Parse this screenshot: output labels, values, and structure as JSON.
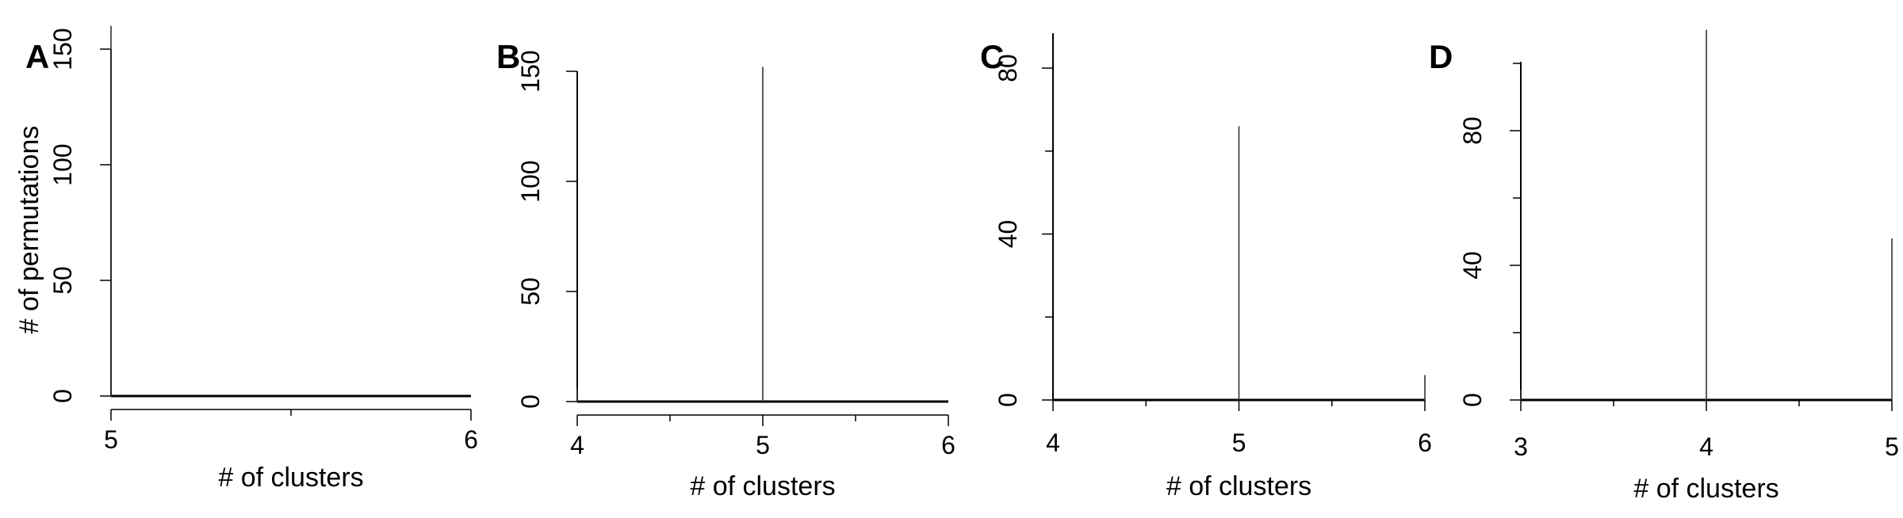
{
  "chart_data": [
    {
      "panel": "A",
      "type": "bar",
      "xlabel": "# of clusters",
      "ylabel": "# of permutations",
      "x_ticks": [
        5,
        6
      ],
      "y_ticks": [
        0,
        50,
        100,
        150
      ],
      "xlim": [
        5,
        6
      ],
      "ylim": [
        0,
        160
      ],
      "x": [
        5,
        6
      ],
      "values": [
        160,
        0
      ]
    },
    {
      "panel": "B",
      "type": "bar",
      "xlabel": "# of clusters",
      "ylabel": "",
      "x_ticks": [
        4,
        5,
        6
      ],
      "y_ticks": [
        0,
        50,
        100,
        150
      ],
      "xlim": [
        4,
        6
      ],
      "ylim": [
        0,
        150
      ],
      "x": [
        4,
        5,
        6
      ],
      "values": [
        6,
        152,
        0
      ]
    },
    {
      "panel": "C",
      "type": "bar",
      "xlabel": "# of clusters",
      "ylabel": "",
      "x_ticks": [
        4,
        5,
        6
      ],
      "y_ticks": [
        0,
        40,
        80
      ],
      "xlim": [
        4,
        6
      ],
      "ylim": [
        0,
        80
      ],
      "x": [
        4,
        5,
        6
      ],
      "values": [
        0,
        66,
        6
      ]
    },
    {
      "panel": "D",
      "type": "bar",
      "xlabel": "# of clusters",
      "ylabel": "",
      "x_ticks": [
        3,
        4,
        5
      ],
      "y_ticks": [
        0,
        40,
        80
      ],
      "xlim": [
        3,
        5
      ],
      "ylim": [
        0,
        100
      ],
      "x": [
        3,
        4,
        5
      ],
      "values": [
        3,
        110,
        48
      ]
    }
  ]
}
